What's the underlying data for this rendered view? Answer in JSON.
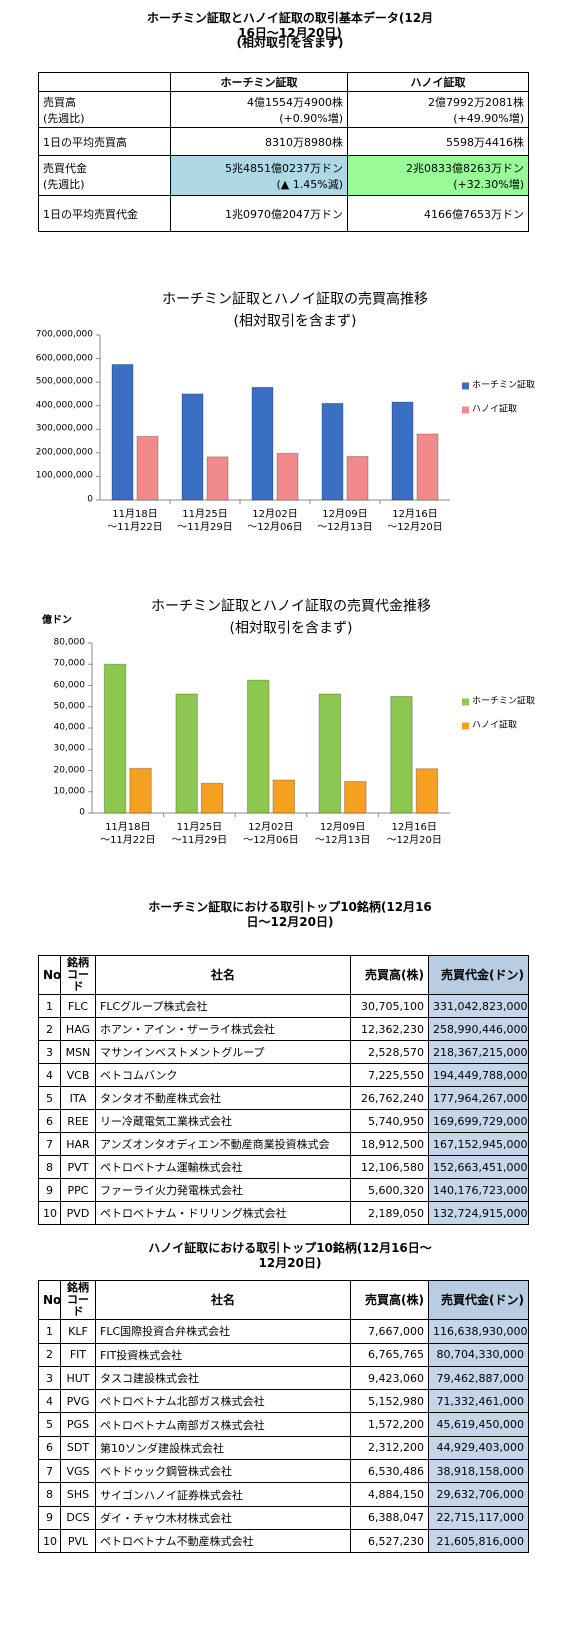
{
  "summary": {
    "title": "ホーチミン証取とハノイ証取の取引基本データ(12月16日～12月20日)",
    "subtitle": "(相対取引を含まず)",
    "header": [
      "ホーチミン証取",
      "ハノイ証取"
    ],
    "rows": [
      [
        "売買高\n(先週比)",
        "4億1554万4900株\n(+0.90%増)",
        "2億7992万2081株\n(+49.90%増)"
      ],
      [
        "1日の平均売買高",
        "8310万8980株",
        "5598万4416株"
      ],
      [
        "売買代金\n(先週比)",
        "5兆4851億0237万ドン\n(▲ 1.45%減)",
        "2兆0833億8263万ドン\n(+32.30%増)"
      ],
      [
        "1日の平均売買代金",
        "1兆0970億2047万ドン",
        "4166億7653万ドン"
      ]
    ]
  },
  "chart_data": [
    {
      "type": "bar",
      "title": "ホーチミン証取とハノイ証取の売買高推移",
      "subtitle": "(相対取引を含まず)",
      "categories": [
        "11月18日\n～11月22日",
        "11月25日\n～11月29日",
        "12月02日\n～12月06日",
        "12月09日\n～12月13日",
        "12月16日\n～12月20日"
      ],
      "series": [
        {
          "name": "ホーチミン証取",
          "color": "#3a6fc4",
          "values": [
            575000000,
            450000000,
            478000000,
            410000000,
            415544900
          ]
        },
        {
          "name": "ハノイ証取",
          "color": "#f28a8c",
          "values": [
            270000000,
            183000000,
            198000000,
            185000000,
            279922081
          ]
        }
      ],
      "ylim": [
        0,
        700000000
      ],
      "yticks": [
        0,
        {
          "value": 100000000,
          "label": "100,000,000"
        },
        {
          "value": 200000000,
          "label": "200,000,000"
        },
        {
          "value": 300000000,
          "label": "300,000,000"
        },
        {
          "value": 400000000,
          "label": "400,000,000"
        },
        {
          "value": 500000000,
          "label": "500,000,000"
        },
        {
          "value": 600000000,
          "label": "600,000,000"
        },
        {
          "value": 700000000,
          "label": "700,000,000"
        }
      ],
      "grid": false,
      "legend": "right"
    },
    {
      "type": "bar",
      "title": "ホーチミン証取とハノイ証取の売買代金推移",
      "subtitle": "(相対取引を含まず)",
      "y_label": "億ドン",
      "categories": [
        "11月18日\n～11月22日",
        "11月25日\n～11月29日",
        "12月02日\n～12月06日",
        "12月09日\n～12月13日",
        "12月16日\n～12月20日"
      ],
      "series": [
        {
          "name": "ホーチミン証取",
          "color": "#8cc850",
          "values": [
            70000,
            56000,
            62500,
            56000,
            54851
          ]
        },
        {
          "name": "ハノイ証取",
          "color": "#f5a020",
          "values": [
            21000,
            14000,
            15500,
            14800,
            20833
          ]
        }
      ],
      "ylim": [
        0,
        80000
      ],
      "yticks": [
        0,
        {
          "value": 10000,
          "label": "10,000"
        },
        {
          "value": 20000,
          "label": "20,000"
        },
        {
          "value": 30000,
          "label": "30,000"
        },
        {
          "value": 40000,
          "label": "40,000"
        },
        {
          "value": 50000,
          "label": "50,000"
        },
        {
          "value": 60000,
          "label": "60,000"
        },
        {
          "value": 70000,
          "label": "70,000"
        },
        {
          "value": 80000,
          "label": "80,000"
        }
      ],
      "grid": false,
      "legend": "right"
    }
  ],
  "hcm_top10": {
    "title": "ホーチミン証取における取引トップ10銘柄(12月16日～12月20日)",
    "header": [
      "No",
      "銘柄\nコード",
      "社名",
      "売買高(株)",
      "売買代金(ドン)"
    ],
    "rows": [
      [
        "1",
        "FLC",
        "FLCグループ株式会社",
        "30,705,100",
        "331,042,823,000"
      ],
      [
        "2",
        "HAG",
        "ホアン・アイン・ザーライ株式会社",
        "12,362,230",
        "258,990,446,000"
      ],
      [
        "3",
        "MSN",
        "マサンインベストメントグループ",
        "2,528,570",
        "218,367,215,000"
      ],
      [
        "4",
        "VCB",
        "ベトコムバンク",
        "7,225,550",
        "194,449,788,000"
      ],
      [
        "5",
        "ITA",
        "タンタオ不動産株式会社",
        "26,762,240",
        "177,964,267,000"
      ],
      [
        "6",
        "REE",
        "リー冷蔵電気工業株式会社",
        "5,740,950",
        "169,699,729,000"
      ],
      [
        "7",
        "HAR",
        "アンズオンタオディエン不動産商業投資株式会",
        "18,912,500",
        "167,152,945,000"
      ],
      [
        "8",
        "PVT",
        "ペトロベトナム運輸株式会社",
        "12,106,580",
        "152,663,451,000"
      ],
      [
        "9",
        "PPC",
        "ファーライ火力発電株式会社",
        "5,600,320",
        "140,176,723,000"
      ],
      [
        "10",
        "PVD",
        "ペトロベトナム・ドリリング株式会社",
        "2,189,050",
        "132,724,915,000"
      ]
    ]
  },
  "hnx_top10": {
    "title": "ハノイ証取における取引トップ10銘柄(12月16日～12月20日)",
    "header": [
      "No",
      "銘柄\nコード",
      "社名",
      "売買高(株)",
      "売買代金(ドン)"
    ],
    "rows": [
      [
        "1",
        "KLF",
        "FLC国際投資合弁株式会社",
        "7,667,000",
        "116,638,930,000"
      ],
      [
        "2",
        "FIT",
        "FIT投資株式会社",
        "6,765,765",
        "80,704,330,000"
      ],
      [
        "3",
        "HUT",
        "タスコ建設株式会社",
        "9,423,060",
        "79,462,887,000"
      ],
      [
        "4",
        "PVG",
        "ペトロベトナム北部ガス株式会社",
        "5,152,980",
        "71,332,461,000"
      ],
      [
        "5",
        "PGS",
        "ペトロベトナム南部ガス株式会社",
        "1,572,200",
        "45,619,450,000"
      ],
      [
        "6",
        "SDT",
        "第10ソンダ建設株式会社",
        "2,312,200",
        "44,929,403,000"
      ],
      [
        "7",
        "VGS",
        "ベトドゥック鋼管株式会社",
        "6,530,486",
        "38,918,158,000"
      ],
      [
        "8",
        "SHS",
        "サイゴンハノイ証券株式会社",
        "4,884,150",
        "29,632,706,000"
      ],
      [
        "9",
        "DCS",
        "ダイ・チャウ木材株式会社",
        "6,388,047",
        "22,715,117,000"
      ],
      [
        "10",
        "PVL",
        "ペトロベトナム不動産株式会社",
        "6,527,230",
        "21,605,816,000"
      ]
    ]
  }
}
